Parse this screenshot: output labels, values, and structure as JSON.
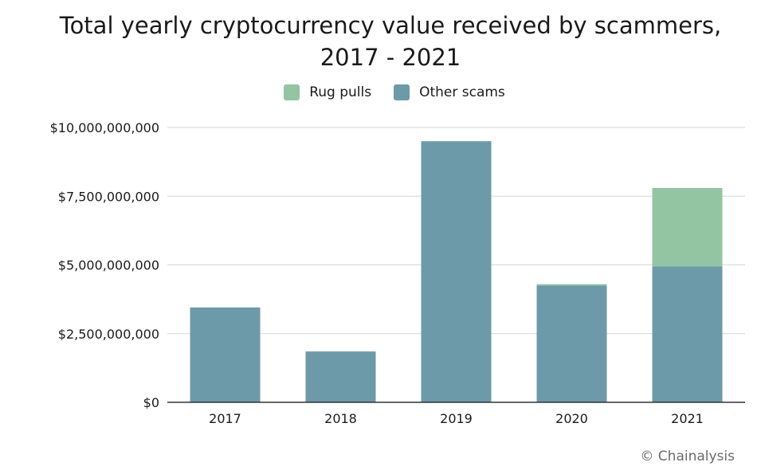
{
  "chart_data": {
    "type": "bar",
    "stacked": true,
    "title": "Total yearly cryptocurrency value received by scammers, 2017 - 2021",
    "categories": [
      "2017",
      "2018",
      "2019",
      "2020",
      "2021"
    ],
    "series": [
      {
        "name": "Other scams",
        "color": "#6c9aa8",
        "values": [
          3450000000,
          1850000000,
          9500000000,
          4250000000,
          4950000000
        ]
      },
      {
        "name": "Rug pulls",
        "color": "#93c5a3",
        "values": [
          0,
          0,
          0,
          50000000,
          2850000000
        ]
      }
    ],
    "yticks": [
      "$0",
      "$2,500,000,000",
      "$5,000,000,000",
      "$7,500,000,000",
      "$10,000,000,000"
    ],
    "ylim": [
      0,
      10000000000
    ],
    "grid": true,
    "legend_position": "top-center",
    "legend_order": [
      "Rug pulls",
      "Other scams"
    ]
  },
  "source": "© Chainalysis"
}
